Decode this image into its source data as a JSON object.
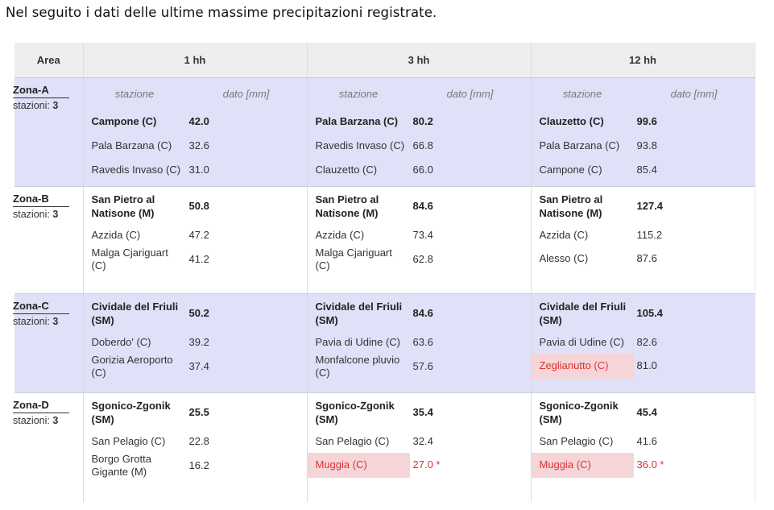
{
  "intro_text": "Nel seguito i dati delle ultime massime precipitazioni registrate.",
  "headers": {
    "area": "Area",
    "h1": "1 hh",
    "h3": "3 hh",
    "h12": "12 hh",
    "station": "stazione",
    "value": "dato [mm]"
  },
  "stations_label": "stazioni:",
  "zones": [
    {
      "name": "Zona-A",
      "count": "3",
      "h1": [
        {
          "station": "Campone (C)",
          "value": "42.0"
        },
        {
          "station": "Pala Barzana (C)",
          "value": "32.6"
        },
        {
          "station": "Ravedis Invaso (C)",
          "value": "31.0"
        }
      ],
      "h3": [
        {
          "station": "Pala Barzana (C)",
          "value": "80.2"
        },
        {
          "station": "Ravedis Invaso (C)",
          "value": "66.8"
        },
        {
          "station": "Clauzetto (C)",
          "value": "66.0"
        }
      ],
      "h12": [
        {
          "station": "Clauzetto (C)",
          "value": "99.6"
        },
        {
          "station": "Pala Barzana (C)",
          "value": "93.8"
        },
        {
          "station": "Campone (C)",
          "value": "85.4"
        }
      ]
    },
    {
      "name": "Zona-B",
      "count": "3",
      "h1": [
        {
          "station": "San Pietro al Natisone (M)",
          "value": "50.8"
        },
        {
          "station": "Azzida (C)",
          "value": "47.2"
        },
        {
          "station": "Malga Cjariguart (C)",
          "value": "41.2"
        }
      ],
      "h3": [
        {
          "station": "San Pietro al Natisone (M)",
          "value": "84.6"
        },
        {
          "station": "Azzida (C)",
          "value": "73.4"
        },
        {
          "station": "Malga Cjariguart (C)",
          "value": "62.8"
        }
      ],
      "h12": [
        {
          "station": "San Pietro al Natisone (M)",
          "value": "127.4"
        },
        {
          "station": "Azzida (C)",
          "value": "115.2"
        },
        {
          "station": "Alesso (C)",
          "value": "87.6"
        }
      ]
    },
    {
      "name": "Zona-C",
      "count": "3",
      "h1": [
        {
          "station": "Cividale del Friuli (SM)",
          "value": "50.2"
        },
        {
          "station": "Doberdo' (C)",
          "value": "39.2"
        },
        {
          "station": "Gorizia Aeroporto (C)",
          "value": "37.4"
        }
      ],
      "h3": [
        {
          "station": "Cividale del Friuli (SM)",
          "value": "84.6"
        },
        {
          "station": "Pavia di Udine (C)",
          "value": "63.6"
        },
        {
          "station": "Monfalcone pluvio (C)",
          "value": "57.6"
        }
      ],
      "h12": [
        {
          "station": "Cividale del Friuli (SM)",
          "value": "105.4"
        },
        {
          "station": "Pavia di Udine (C)",
          "value": "82.6"
        },
        {
          "station": "Zeglianutto (C)",
          "value": "81.0"
        }
      ]
    },
    {
      "name": "Zona-D",
      "count": "3",
      "h1": [
        {
          "station": "Sgonico-Zgonik (SM)",
          "value": "25.5"
        },
        {
          "station": "San Pelagio (C)",
          "value": "22.8"
        },
        {
          "station": "Borgo Grotta Gigante (M)",
          "value": "16.2"
        }
      ],
      "h3": [
        {
          "station": "Sgonico-Zgonik (SM)",
          "value": "35.4"
        },
        {
          "station": "San Pelagio (C)",
          "value": "32.4"
        },
        {
          "station": "Muggia (C)",
          "value": "27.0 *"
        }
      ],
      "h12": [
        {
          "station": "Sgonico-Zgonik (SM)",
          "value": "45.4"
        },
        {
          "station": "San Pelagio (C)",
          "value": "41.6"
        },
        {
          "station": "Muggia (C)",
          "value": "36.0 *"
        }
      ]
    }
  ]
}
